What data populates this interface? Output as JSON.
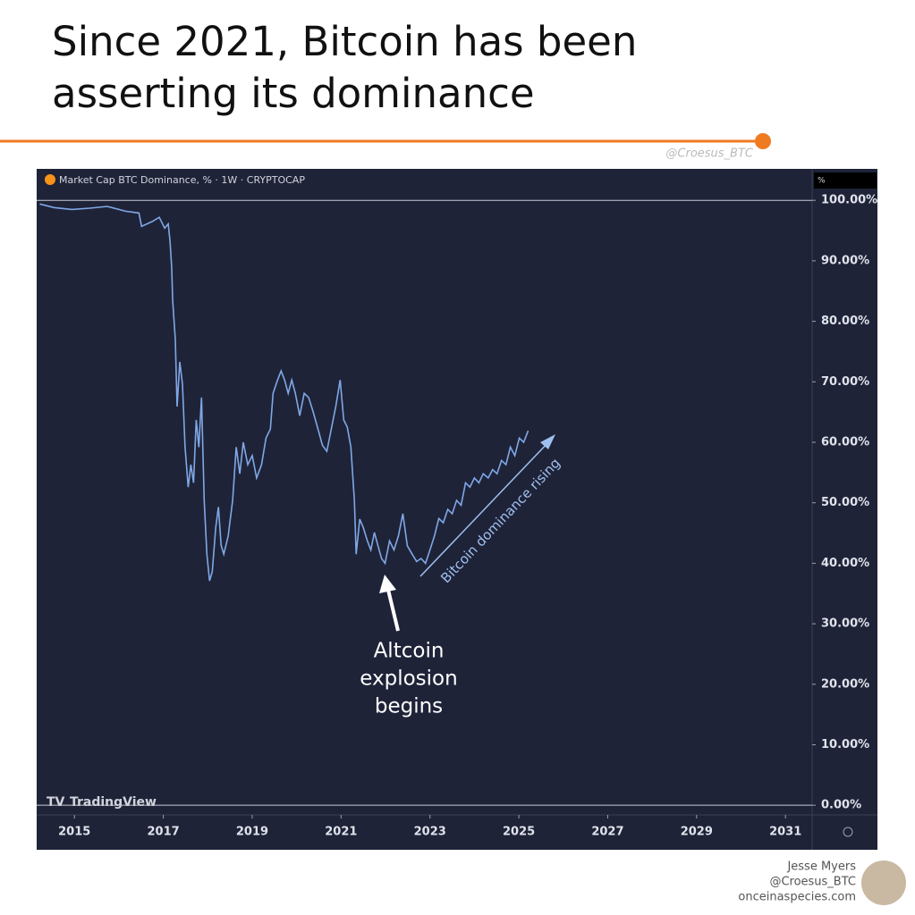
{
  "title": "Since 2021, Bitcoin has been asserting its dominance",
  "watermark": "@Croesus_BTC",
  "chart_data": {
    "type": "line",
    "header": "Market Cap BTC Dominance, % · 1W · CRYPTOCAP",
    "y_unit": "%",
    "logo": "TradingView",
    "color": "#7fa8e6",
    "xlim": [
      2014.15,
      2031.6
    ],
    "xticks": [
      2015,
      2017,
      2019,
      2021,
      2023,
      2025,
      2027,
      2029,
      2031
    ],
    "ylim": [
      -1.6,
      105.2
    ],
    "yticks": [
      {
        "value": 0,
        "label": "0.00%"
      },
      {
        "value": 10,
        "label": "10.00%"
      },
      {
        "value": 20,
        "label": "20.00%"
      },
      {
        "value": 30,
        "label": "30.00%"
      },
      {
        "value": 40,
        "label": "40.00%"
      },
      {
        "value": 50,
        "label": "50.00%"
      },
      {
        "value": 60,
        "label": "60.00%"
      },
      {
        "value": 70,
        "label": "70.00%"
      },
      {
        "value": 80,
        "label": "80.00%"
      },
      {
        "value": 90,
        "label": "90.00%"
      },
      {
        "value": 100,
        "label": "100.00%"
      }
    ],
    "x": [
      2014.22,
      2014.54,
      2014.94,
      2015.34,
      2015.74,
      2016.15,
      2016.45,
      2016.51,
      2016.75,
      2016.91,
      2017.03,
      2017.11,
      2017.15,
      2017.19,
      2017.21,
      2017.27,
      2017.31,
      2017.37,
      2017.43,
      2017.49,
      2017.56,
      2017.62,
      2017.68,
      2017.74,
      2017.8,
      2017.86,
      2017.92,
      2017.98,
      2018.04,
      2018.1,
      2018.18,
      2018.24,
      2018.3,
      2018.36,
      2018.46,
      2018.56,
      2018.64,
      2018.72,
      2018.8,
      2018.9,
      2019.0,
      2019.1,
      2019.21,
      2019.31,
      2019.41,
      2019.47,
      2019.57,
      2019.65,
      2019.73,
      2019.81,
      2019.89,
      2019.97,
      2020.07,
      2020.17,
      2020.27,
      2020.37,
      2020.48,
      2020.58,
      2020.68,
      2020.78,
      2020.88,
      2020.98,
      2021.06,
      2021.14,
      2021.22,
      2021.3,
      2021.34,
      2021.42,
      2021.5,
      2021.59,
      2021.67,
      2021.75,
      2021.83,
      2021.91,
      2021.99,
      2022.09,
      2022.19,
      2022.29,
      2022.39,
      2022.49,
      2022.6,
      2022.7,
      2022.8,
      2022.9,
      2023.0,
      2023.1,
      2023.2,
      2023.3,
      2023.4,
      2023.5,
      2023.6,
      2023.7,
      2023.8,
      2023.9,
      2024.0,
      2024.1,
      2024.2,
      2024.31,
      2024.41,
      2024.51,
      2024.61,
      2024.71,
      2024.81,
      2024.91,
      2025.01,
      2025.11,
      2025.21
    ],
    "values": [
      99.4,
      98.8,
      98.5,
      98.7,
      99.0,
      98.2,
      97.9,
      95.7,
      96.5,
      97.2,
      95.4,
      96.1,
      93.2,
      88.8,
      83.6,
      77.0,
      65.9,
      73.3,
      69.6,
      59.2,
      52.6,
      56.3,
      53.3,
      63.7,
      59.2,
      67.4,
      50.4,
      41.5,
      37.1,
      38.6,
      45.9,
      49.3,
      43.0,
      41.5,
      44.5,
      50.4,
      59.2,
      54.8,
      60.0,
      56.3,
      57.8,
      54.1,
      56.3,
      60.7,
      62.2,
      68.1,
      70.3,
      71.8,
      70.3,
      68.1,
      70.3,
      68.1,
      64.4,
      68.1,
      67.4,
      65.1,
      62.2,
      59.5,
      58.5,
      62.2,
      65.9,
      70.3,
      63.7,
      62.5,
      59.2,
      50.4,
      41.5,
      47.3,
      45.9,
      43.7,
      42.2,
      45.1,
      42.9,
      40.8,
      40.0,
      43.7,
      42.2,
      44.5,
      48.2,
      42.9,
      41.5,
      40.3,
      40.8,
      40.0,
      42.2,
      44.5,
      47.4,
      46.7,
      48.9,
      48.2,
      50.4,
      49.6,
      53.3,
      52.6,
      54.1,
      53.3,
      54.8,
      54.1,
      55.5,
      54.8,
      57.0,
      56.3,
      59.2,
      57.8,
      60.7,
      60.0,
      61.9
    ],
    "annotations": {
      "altcoin": [
        "Altcoin",
        "explosion",
        "begins"
      ],
      "rising": "Bitcoin dominance rising"
    }
  },
  "footer": [
    "Jesse Myers",
    "@Croesus_BTC",
    "onceinaspecies.com"
  ]
}
